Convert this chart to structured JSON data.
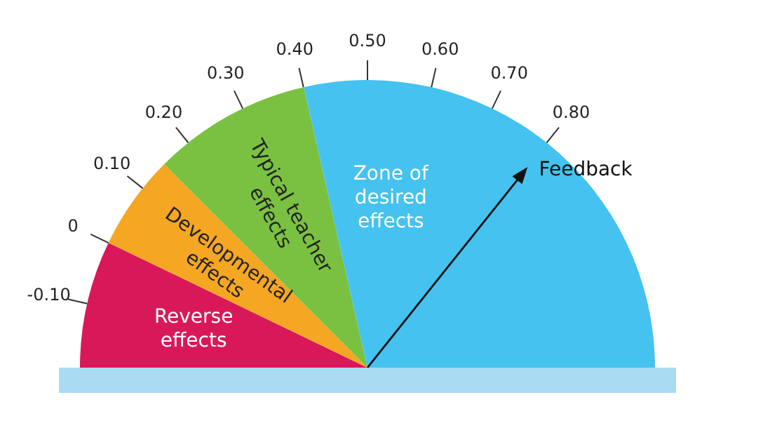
{
  "chart_data": {
    "type": "pie",
    "categories": [
      "Reverse effects",
      "Developmental effects",
      "Typical teacher effects",
      "Zone of desired effects"
    ],
    "values": [
      14.3,
      10.7,
      17.9,
      57.1
    ],
    "colors": [
      "#d9185a",
      "#f5a623",
      "#7ac142",
      "#45c2f0"
    ],
    "needle": "Zone of desired effects",
    "annotations": [
      "-0.10",
      "0",
      "0.10",
      "0.20",
      "0.30",
      "0.40",
      "0.50",
      "0.60",
      "0.70",
      "0.80",
      "Feedback"
    ],
    "legend": false
  }
}
